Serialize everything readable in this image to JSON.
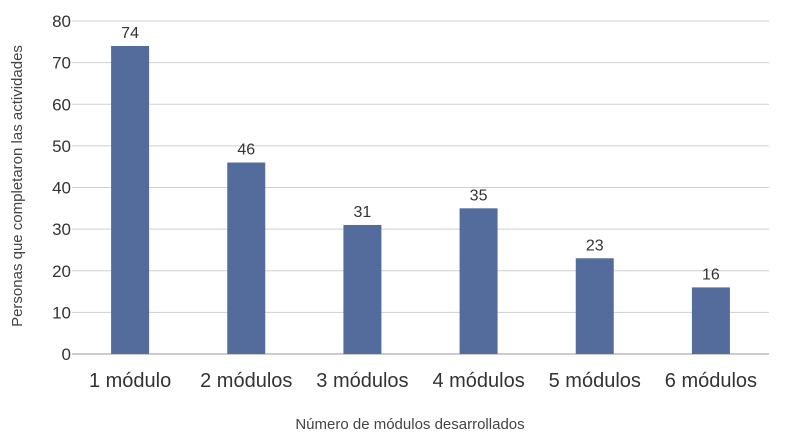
{
  "chart_data": {
    "type": "bar",
    "categories": [
      "1 módulo",
      "2 módulos",
      "3 módulos",
      "4 módulos",
      "5 módulos",
      "6 módulos"
    ],
    "values": [
      74,
      46,
      31,
      35,
      23,
      16
    ],
    "data_labels": [
      "74",
      "46",
      "31",
      "35",
      "23",
      "16"
    ],
    "xlabel": "Número de módulos desarrollados",
    "ylabel": "Personas  que completaron las actividades",
    "ylim": [
      0,
      80
    ],
    "yticks": [
      0,
      10,
      20,
      30,
      40,
      50,
      60,
      70,
      80
    ],
    "ytick_labels": [
      "0",
      "10",
      "20",
      "30",
      "40",
      "50",
      "60",
      "70",
      "80"
    ],
    "grid": true,
    "legend": "none",
    "bar_color": "#536c9c",
    "grid_color": "#cfcfcf"
  }
}
